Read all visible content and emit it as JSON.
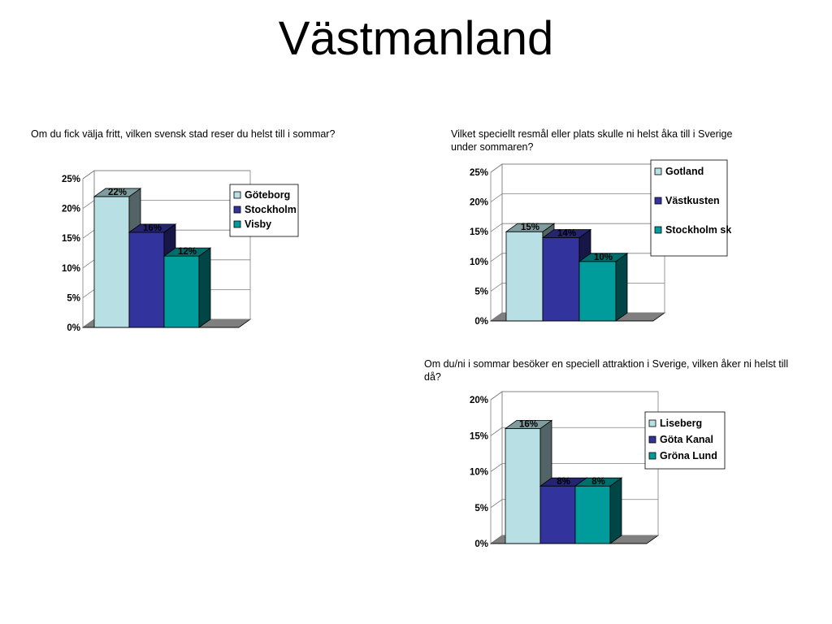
{
  "title": "Västmanland",
  "colors": {
    "light": "#b8dfe3",
    "blue": "#33339e",
    "teal": "#009c9c"
  },
  "chart_data": [
    {
      "type": "bar",
      "title": "Om du fick välja fritt, vilken svensk stad reser du helst till i sommar?",
      "categories": [
        "Göteborg",
        "Stockholm",
        "Visby"
      ],
      "values": [
        22,
        16,
        12
      ],
      "value_labels": [
        "22%",
        "16%",
        "12%"
      ],
      "ylim": [
        0,
        25
      ],
      "yticks": [
        "0%",
        "5%",
        "10%",
        "15%",
        "20%",
        "25%"
      ],
      "grid": true,
      "legend": "top-right"
    },
    {
      "type": "bar",
      "title": "Vilket speciellt resmål eller plats skulle ni helst åka till i Sverige under sommaren?",
      "categories": [
        "Gotland",
        "Västkusten",
        "Stockholm skärgård"
      ],
      "values": [
        15,
        14,
        10
      ],
      "value_labels": [
        "15%",
        "14%",
        "10%"
      ],
      "ylim": [
        0,
        25
      ],
      "yticks": [
        "0%",
        "5%",
        "10%",
        "15%",
        "20%",
        "25%"
      ],
      "grid": true,
      "legend": "top-right"
    },
    {
      "type": "bar",
      "title": "Om du/ni i sommar besöker en speciell attraktion i Sverige, vilken åker ni helst till då?",
      "categories": [
        "Liseberg",
        "Göta Kanal",
        "Gröna Lund"
      ],
      "values": [
        16,
        8,
        8
      ],
      "value_labels": [
        "16%",
        "8%",
        "8%"
      ],
      "ylim": [
        0,
        20
      ],
      "yticks": [
        "0%",
        "5%",
        "10%",
        "15%",
        "20%"
      ],
      "grid": true,
      "legend": "top-right"
    }
  ]
}
